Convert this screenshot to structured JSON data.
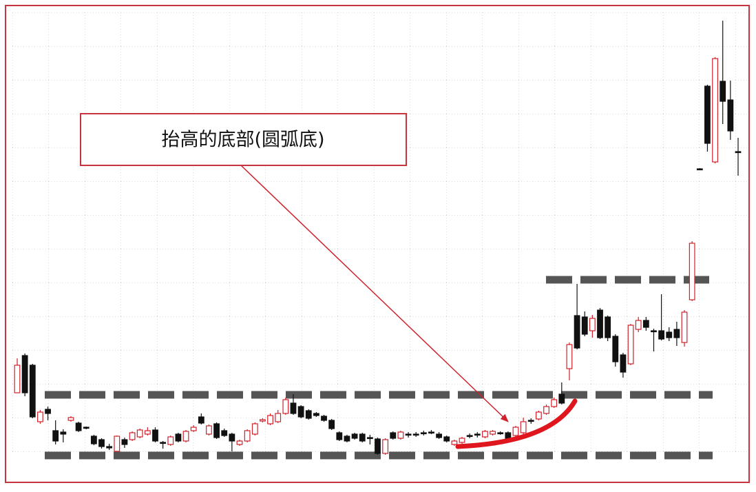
{
  "chart_data": {
    "type": "candlestick",
    "annotation": "抬高的底部(圆弧底)",
    "categories": [
      null,
      null,
      null,
      null,
      null,
      null,
      null,
      null,
      null,
      null,
      null,
      null,
      null,
      null,
      null,
      null,
      null,
      null,
      null,
      null,
      null,
      null,
      null,
      null,
      null,
      null,
      null,
      null,
      null,
      null,
      null,
      null,
      null,
      null,
      null,
      null,
      null,
      null,
      null,
      null,
      null,
      null,
      null,
      null,
      null,
      null,
      null,
      null,
      null,
      null,
      null,
      null,
      null,
      null,
      null,
      null,
      null,
      null,
      null,
      null,
      null,
      null,
      null,
      null,
      null,
      null,
      null,
      null,
      null,
      null,
      null,
      null,
      null,
      null,
      null,
      null,
      null,
      null,
      null,
      null,
      null,
      null,
      null,
      null,
      null,
      null,
      null,
      null,
      null,
      null,
      null,
      null,
      null,
      null,
      null
    ],
    "open": [
      13,
      18.4,
      17,
      8.8,
      10.6,
      7.5,
      7.3,
      9,
      8.6,
      8,
      6.7,
      6.2,
      5.2,
      4.5,
      6.2,
      6.2,
      6.6,
      7,
      7.6,
      5.8,
      5.5,
      7,
      6,
      7.5,
      9.5,
      7,
      8.5,
      7.5,
      7,
      5.5,
      6,
      7,
      8.9,
      8.5,
      8.8,
      10,
      11.5,
      11,
      10.4,
      10,
      9.6,
      9,
      7.2,
      6.7,
      7,
      7,
      6.5,
      6.3,
      4.2,
      7.2,
      6.4,
      7,
      7,
      7.2,
      7.3,
      7,
      6.6,
      5.5,
      5.8,
      6.8,
      7,
      6.6,
      7,
      7.2,
      7.2,
      6.8,
      7.2,
      9,
      9.2,
      10,
      11,
      12.8,
      16.5,
      24.2,
      24,
      22,
      25,
      24,
      21.2,
      18.5,
      17.2,
      22.2,
      23.5,
      22,
      22,
      21.8,
      22.2,
      20.3,
      26.5,
      45.5,
      57.5,
      46.5,
      58.2,
      55.5,
      48
    ],
    "high": [
      18,
      18.7,
      17.2,
      10.5,
      11,
      9,
      7.7,
      9.6,
      8.8,
      8.1,
      6.9,
      6.4,
      5.6,
      6.8,
      6.5,
      7.4,
      7.8,
      8,
      8,
      6,
      6.8,
      7.2,
      7.6,
      8.3,
      10,
      8.4,
      8.7,
      7.8,
      7.2,
      6.2,
      7.7,
      8.7,
      9.3,
      10,
      10.5,
      12.3,
      12.8,
      11.2,
      10.6,
      10.2,
      9.8,
      9.2,
      7.4,
      6.9,
      7.2,
      7.2,
      6.9,
      6.5,
      6.4,
      7.4,
      7.5,
      7.3,
      7.3,
      7.5,
      7.6,
      7.3,
      6.8,
      6.2,
      6.6,
      7.1,
      7.3,
      7.6,
      7.6,
      7.4,
      7.4,
      8.2,
      9.4,
      9.3,
      10.4,
      11.3,
      12.3,
      14.5,
      20.3,
      28.8,
      24.8,
      24.3,
      25.3,
      24.2,
      21.5,
      18.8,
      23,
      24,
      24,
      22.3,
      27.3,
      22.5,
      23.3,
      25,
      35,
      45.6,
      57.7,
      61.7,
      67,
      58.3,
      50
    ],
    "low": [
      13,
      12.5,
      9.3,
      8.5,
      9,
      5.5,
      5.8,
      8.8,
      7.3,
      7.7,
      5.4,
      4.9,
      4.7,
      4.3,
      5,
      6,
      6.4,
      6.8,
      5.8,
      4.9,
      5.3,
      5.8,
      5.8,
      7.3,
      8.4,
      6.8,
      6.3,
      6.6,
      4.5,
      5.3,
      5.8,
      6.8,
      8.7,
      8.3,
      8.6,
      9.8,
      9.8,
      9.3,
      9.1,
      9.5,
      8.8,
      7.6,
      6,
      5.8,
      6.2,
      5.8,
      5.5,
      4,
      4,
      6.2,
      6.2,
      6.5,
      6.6,
      6.8,
      7,
      6.3,
      5.8,
      5.3,
      5.6,
      6.4,
      6.5,
      6.4,
      6.8,
      6.9,
      6.2,
      6.6,
      7,
      8.5,
      9,
      9.8,
      10.8,
      11.3,
      14.8,
      19.3,
      21.2,
      21,
      20.8,
      20.5,
      16.8,
      15.2,
      17,
      21.8,
      22,
      19,
      20.6,
      20.5,
      19.8,
      19.7,
      26.3,
      45.4,
      48,
      46.3,
      52,
      49.7,
      44.5
    ],
    "close": [
      17,
      13,
      9.5,
      10.2,
      10,
      6,
      7,
      9.4,
      7.5,
      7.9,
      5.6,
      5.2,
      5,
      6.7,
      5.5,
      7.2,
      7.6,
      7.5,
      6,
      5.7,
      6.6,
      6,
      7.4,
      8,
      8.6,
      8.2,
      6.5,
      6.8,
      6,
      6,
      7.5,
      8.5,
      9.1,
      9.7,
      10,
      12,
      10,
      9.5,
      9.3,
      9.7,
      9,
      7.8,
      6.2,
      6,
      6.4,
      6,
      6.4,
      4.2,
      6.2,
      6.4,
      7.3,
      6.9,
      6.9,
      7.1,
      7.2,
      6.5,
      6,
      6,
      6.4,
      6.7,
      6.9,
      7.4,
      7.4,
      7.1,
      6.4,
      8,
      8.8,
      8.9,
      10.2,
      11,
      12,
      11.5,
      20,
      19.5,
      21.5,
      23.8,
      21,
      21,
      17.5,
      16,
      22.8,
      23.5,
      22.5,
      21.9,
      20.8,
      21,
      21,
      24.7,
      34.7,
      45.5,
      49.2,
      61.5,
      55.3,
      51,
      48
    ],
    "ylim": [
      0,
      70
    ],
    "levels": [
      12.7,
      3.9,
      29.4
    ],
    "up_color": "#d0202a",
    "down_color": "#111111",
    "level_color": "#555555",
    "grid": true
  }
}
